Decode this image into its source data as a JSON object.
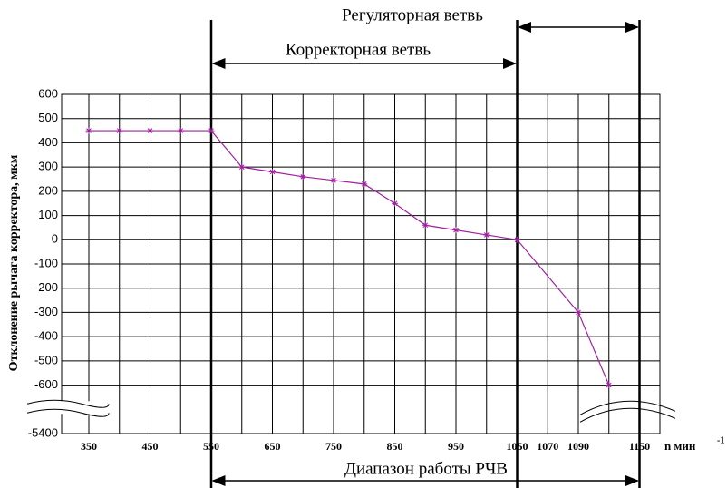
{
  "chart_data": {
    "type": "line",
    "y_label": "Отклонение рычага корректора, мкм",
    "x_label": "n мин",
    "x_label_sup": "-1",
    "annotations": [
      "Регуляторная ветвь",
      "Корректорная ветвь",
      "Диапазон работы РЧВ"
    ],
    "categories": [
      "350",
      null,
      "450",
      null,
      "550",
      null,
      "650",
      null,
      "750",
      null,
      "850",
      null,
      "950",
      null,
      "1050",
      "1070",
      "1090",
      null,
      "1150"
    ],
    "values": [
      450,
      450,
      450,
      450,
      450,
      300,
      280,
      260,
      245,
      230,
      150,
      60,
      40,
      20,
      0,
      null,
      -300,
      -600,
      null
    ],
    "color": "#a020a0",
    "ylim": [
      -5400,
      600
    ],
    "yticks": [
      -5400,
      -600,
      -500,
      -400,
      -300,
      -200,
      -100,
      0,
      100,
      200,
      300,
      400,
      500,
      600
    ],
    "y_break": true,
    "grid": true
  }
}
